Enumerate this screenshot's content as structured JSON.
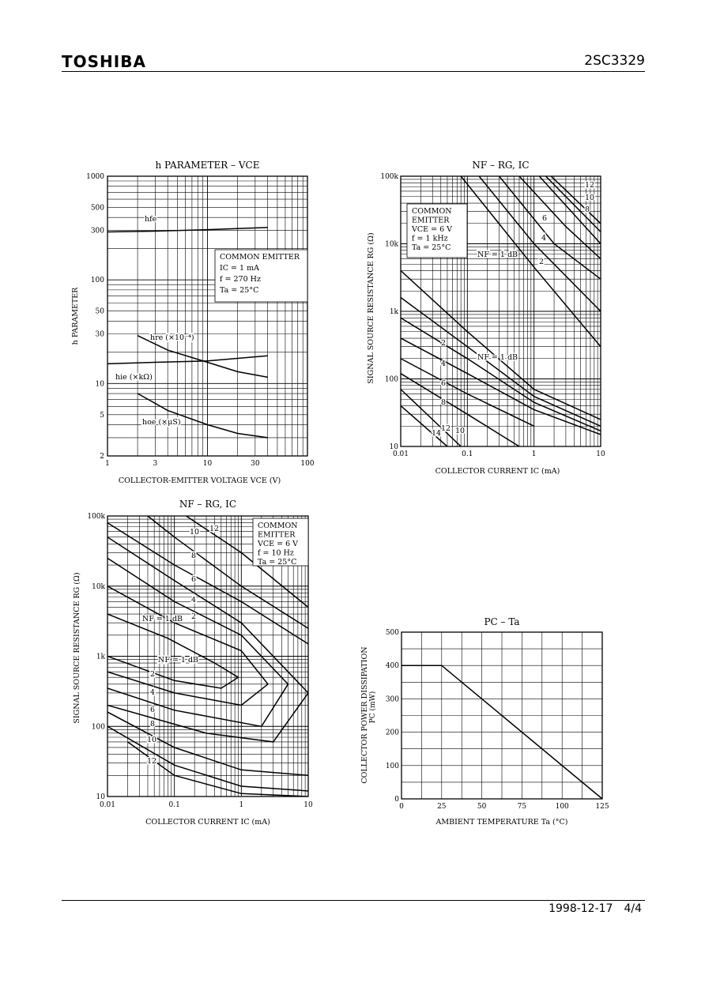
{
  "header": {
    "brand": "TOSHIBA",
    "part_number": "2SC3329"
  },
  "footer": {
    "date": "1998-12-17",
    "page": "4/4"
  },
  "chart_data": [
    {
      "id": "hparam",
      "type": "line",
      "title": "h PARAMETER  –  VCE",
      "xlabel": "COLLECTOR-EMITTER VOLTAGE   VCE   (V)",
      "ylabel": "h PARAMETER",
      "x_scale": "log",
      "y_scale": "log",
      "xlim": [
        1,
        100
      ],
      "ylim": [
        2,
        1000
      ],
      "x_ticks": [
        1,
        3,
        10,
        30,
        100
      ],
      "x_tick_labels": [
        "1",
        "3",
        "10",
        "30",
        "100"
      ],
      "y_ticks": [
        2,
        5,
        10,
        30,
        50,
        100,
        300,
        500,
        1000
      ],
      "y_tick_labels": [
        "2",
        "5",
        "10",
        "30",
        "50",
        "100",
        "300",
        "500",
        "1000"
      ],
      "legend_lines": [
        "COMMON EMITTER",
        "IC = 1 mA",
        "f = 270 Hz",
        "Ta = 25°C"
      ],
      "series": [
        {
          "name": "hfe",
          "x": [
            1,
            3,
            10,
            40
          ],
          "y": [
            290,
            295,
            305,
            320
          ]
        },
        {
          "name": "hre (×10⁻⁴)",
          "x": [
            2,
            4,
            10,
            20,
            40
          ],
          "y": [
            29,
            21,
            16,
            13,
            11.5
          ]
        },
        {
          "name": "hie (×kΩ)",
          "x": [
            1,
            3,
            10,
            40
          ],
          "y": [
            15.5,
            16,
            16.5,
            18.5
          ]
        },
        {
          "name": "hoe (×μS)",
          "x": [
            2,
            4,
            10,
            20,
            40
          ],
          "y": [
            8,
            5.5,
            4,
            3.3,
            3
          ]
        }
      ]
    },
    {
      "id": "nf1",
      "type": "line",
      "title": "NF  –  RG, IC",
      "xlabel": "COLLECTOR CURRENT   IC   (mA)",
      "ylabel": "SIGNAL SOURCE RESISTANCE   RG   (Ω)",
      "x_scale": "log",
      "y_scale": "log",
      "xlim": [
        0.01,
        10
      ],
      "ylim": [
        10,
        100000
      ],
      "x_tick_labels": [
        "0.01",
        "0.1",
        "1",
        "10"
      ],
      "y_tick_labels": [
        "10",
        "100",
        "1k",
        "10k",
        "100k"
      ],
      "legend_lines": [
        "COMMON",
        "EMITTER",
        "VCE = 6 V",
        "f = 1 kHz",
        "Ta = 25°C"
      ],
      "curve_labels": [
        "12",
        "10",
        "8",
        "6",
        "4",
        "2",
        "NF = 1 dB",
        "2",
        "4",
        "6",
        "8",
        "NF = 1 dB",
        "10",
        "12",
        "14"
      ],
      "series": [
        {
          "name": "NF = 1 dB (high)",
          "x": [
            0.08,
            1,
            10
          ],
          "y": [
            100000,
            4500,
            300
          ]
        },
        {
          "name": "2 (high)",
          "x": [
            0.15,
            1,
            10
          ],
          "y": [
            100000,
            10000,
            1000
          ]
        },
        {
          "name": "4 (high)",
          "x": [
            0.3,
            2,
            10
          ],
          "y": [
            100000,
            10000,
            3000
          ]
        },
        {
          "name": "6 (high)",
          "x": [
            0.6,
            3,
            10
          ],
          "y": [
            100000,
            18000,
            6000
          ]
        },
        {
          "name": "8 (high)",
          "x": [
            1.2,
            10
          ],
          "y": [
            100000,
            10000
          ]
        },
        {
          "name": "10 (high)",
          "x": [
            1.5,
            10
          ],
          "y": [
            100000,
            15000
          ]
        },
        {
          "name": "12 (high)",
          "x": [
            1.8,
            10
          ],
          "y": [
            100000,
            20000
          ]
        },
        {
          "name": "NF = 1 dB (low)",
          "x": [
            0.01,
            0.1,
            1,
            10
          ],
          "y": [
            4000,
            500,
            70,
            25
          ]
        },
        {
          "name": "2 (low)",
          "x": [
            0.01,
            0.1,
            1,
            10
          ],
          "y": [
            1600,
            300,
            55,
            20
          ]
        },
        {
          "name": "4 (low)",
          "x": [
            0.01,
            0.1,
            1,
            10
          ],
          "y": [
            800,
            200,
            45,
            17
          ]
        },
        {
          "name": "6 (low)",
          "x": [
            0.01,
            0.1,
            1,
            10
          ],
          "y": [
            400,
            120,
            35,
            15
          ]
        },
        {
          "name": "8 (low)",
          "x": [
            0.01,
            0.1,
            1
          ],
          "y": [
            200,
            60,
            20
          ]
        },
        {
          "name": "10 (low)",
          "x": [
            0.01,
            0.1,
            0.6
          ],
          "y": [
            120,
            30,
            10
          ]
        },
        {
          "name": "12 (low)",
          "x": [
            0.01,
            0.08
          ],
          "y": [
            70,
            10
          ]
        },
        {
          "name": "14 (low)",
          "x": [
            0.01,
            0.05
          ],
          "y": [
            40,
            10
          ]
        }
      ]
    },
    {
      "id": "nf2",
      "type": "line",
      "title": "NF  –  RG, IC",
      "xlabel": "COLLECTOR CURRENT   IC   (mA)",
      "ylabel": "SIGNAL SOURCE RESISTANCE   RG   (Ω)",
      "x_scale": "log",
      "y_scale": "log",
      "xlim": [
        0.01,
        10
      ],
      "ylim": [
        10,
        100000
      ],
      "x_tick_labels": [
        "0.01",
        "0.1",
        "1",
        "10"
      ],
      "y_tick_labels": [
        "10",
        "100",
        "1k",
        "10k",
        "100k"
      ],
      "legend_lines": [
        "COMMON",
        "EMITTER",
        "VCE = 6 V",
        "f = 10 Hz",
        "Ta = 25°C"
      ],
      "curve_labels": [
        "10",
        "12",
        "8",
        "6",
        "4",
        "2",
        "NF = 1 dB",
        "NF = 1 dB",
        "2",
        "4",
        "6",
        "8",
        "10",
        "12"
      ],
      "series": [
        {
          "name": "NF = 1 dB (loop)",
          "x": [
            0.01,
            0.08,
            0.4,
            0.9,
            0.5,
            0.1,
            0.01
          ],
          "y": [
            4000,
            1800,
            800,
            500,
            350,
            450,
            1000
          ]
        },
        {
          "name": "2 (loop)",
          "x": [
            0.01,
            0.1,
            1,
            2.5,
            1,
            0.1,
            0.01
          ],
          "y": [
            10000,
            3000,
            1200,
            400,
            200,
            300,
            600
          ]
        },
        {
          "name": "4 (loop)",
          "x": [
            0.01,
            0.1,
            1,
            5,
            2,
            0.1,
            0.01
          ],
          "y": [
            25000,
            6000,
            2000,
            400,
            100,
            170,
            350
          ]
        },
        {
          "name": "6 (loop)",
          "x": [
            0.01,
            0.1,
            1,
            10,
            3,
            0.3,
            0.01
          ],
          "y": [
            50000,
            12000,
            3000,
            300,
            60,
            80,
            200
          ]
        },
        {
          "name": "8",
          "x": [
            0.01,
            0.1,
            1,
            10
          ],
          "y": [
            80000,
            20000,
            6000,
            1500
          ]
        },
        {
          "name": "10",
          "x": [
            0.04,
            0.1,
            1,
            10
          ],
          "y": [
            100000,
            50000,
            10000,
            2500
          ]
        },
        {
          "name": "12",
          "x": [
            0.15,
            1,
            10
          ],
          "y": [
            100000,
            30000,
            5000
          ]
        },
        {
          "name": "8 (low)",
          "x": [
            0.01,
            0.1,
            1,
            10
          ],
          "y": [
            160,
            50,
            24,
            20
          ]
        },
        {
          "name": "10 (low)",
          "x": [
            0.01,
            0.1,
            1,
            10
          ],
          "y": [
            100,
            28,
            14,
            12
          ]
        },
        {
          "name": "12 (low)",
          "x": [
            0.02,
            0.1,
            1,
            10
          ],
          "y": [
            60,
            20,
            11,
            10
          ]
        }
      ]
    },
    {
      "id": "pc_ta",
      "type": "line",
      "title": "PC  –  Ta",
      "xlabel": "AMBIENT TEMPERATURE   Ta   (°C)",
      "ylabel": "COLLECTOR POWER DISSIPATION",
      "ylabel2": "PC   (mW)",
      "xlim": [
        0,
        125
      ],
      "ylim": [
        0,
        500
      ],
      "x_ticks": [
        0,
        25,
        50,
        75,
        100,
        125
      ],
      "y_ticks": [
        0,
        100,
        200,
        300,
        400,
        500
      ],
      "series": [
        {
          "name": "PC",
          "x": [
            0,
            25,
            125
          ],
          "y": [
            400,
            400,
            0
          ]
        }
      ]
    }
  ]
}
